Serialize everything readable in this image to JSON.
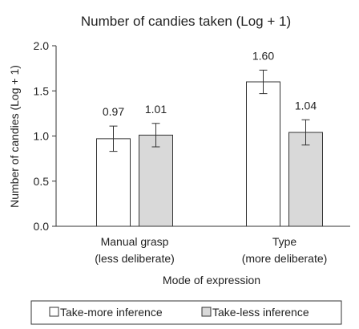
{
  "chart_data": {
    "type": "bar",
    "title": "Number of candies taken (Log + 1)",
    "ylabel": "Number of candies (Log + 1)",
    "xlabel": "Mode of expression",
    "ylim": [
      0,
      2.0
    ],
    "yticks": [
      "0.0",
      "0.5",
      "1.0",
      "1.5",
      "2.0"
    ],
    "grid": false,
    "legend_position": "bottom",
    "categories": [
      {
        "line1": "Manual grasp",
        "line2": "(less deliberate)"
      },
      {
        "line1": "Type",
        "line2": "(more deliberate)"
      }
    ],
    "series": [
      {
        "name": "Take-more inference",
        "color": "#ffffff",
        "values": [
          0.97,
          1.6
        ],
        "labels": [
          "0.97",
          "1.60"
        ],
        "error": [
          0.14,
          0.13
        ]
      },
      {
        "name": "Take-less inference",
        "color": "#d9d9d9",
        "values": [
          1.01,
          1.04
        ],
        "labels": [
          "1.01",
          "1.04"
        ],
        "error": [
          0.13,
          0.14
        ]
      }
    ]
  }
}
